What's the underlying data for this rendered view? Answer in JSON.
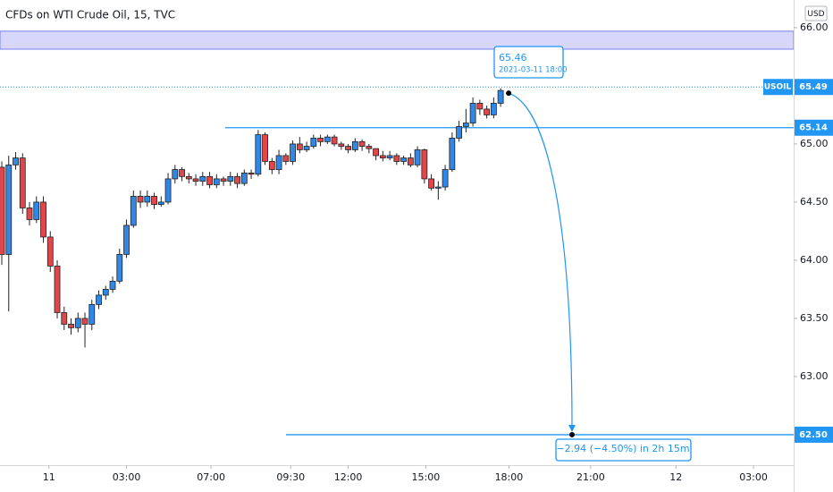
{
  "chart_data": {
    "type": "candlestick",
    "title": "CFDs on WTI Crude Oil, 15, TVC",
    "currency": "USD",
    "up_color": "#2f88e8",
    "down_color": "#e0474c",
    "open": [
      64.8,
      64.05,
      64.82,
      64.88,
      64.45,
      64.35,
      64.5,
      64.2,
      63.95,
      63.55,
      63.45,
      63.42,
      63.5,
      63.45,
      63.62,
      63.7,
      63.75,
      63.82,
      64.05,
      64.3,
      64.55,
      64.5,
      64.55,
      64.48,
      64.5,
      64.7,
      64.78,
      64.72,
      64.7,
      64.68,
      64.72,
      64.65,
      64.7,
      64.68,
      64.72,
      64.66,
      64.75,
      64.74,
      65.08,
      64.85,
      64.78,
      64.9,
      64.85,
      65.0,
      64.95,
      64.98,
      65.05,
      65.02,
      65.06,
      65.0,
      64.98,
      64.95,
      65.02,
      64.98,
      64.96,
      64.9,
      64.88,
      64.9,
      64.85,
      64.88,
      64.82,
      64.95,
      64.7,
      64.62,
      64.63,
      64.78,
      65.05,
      65.15,
      65.18,
      65.35,
      65.3,
      65.25,
      65.35
    ],
    "high": [
      64.85,
      64.9,
      64.93,
      64.92,
      64.5,
      64.55,
      64.55,
      64.25,
      64.0,
      63.6,
      63.5,
      63.55,
      63.55,
      63.66,
      63.74,
      63.78,
      63.86,
      64.1,
      64.35,
      64.6,
      64.6,
      64.6,
      64.58,
      64.55,
      64.75,
      64.82,
      64.8,
      64.75,
      64.74,
      64.76,
      64.76,
      64.74,
      64.72,
      64.76,
      64.75,
      64.78,
      64.78,
      65.12,
      65.1,
      64.88,
      64.95,
      64.92,
      65.03,
      65.06,
      65.02,
      65.08,
      65.08,
      65.08,
      65.08,
      65.02,
      65.0,
      65.05,
      65.04,
      65.0,
      64.96,
      64.94,
      64.94,
      64.92,
      64.9,
      64.92,
      64.98,
      64.96,
      64.74,
      64.68,
      64.82,
      65.1,
      65.2,
      65.3,
      65.4,
      65.38,
      65.33,
      65.4,
      65.48
    ],
    "low": [
      63.96,
      63.56,
      64.78,
      64.4,
      64.3,
      64.32,
      64.15,
      63.9,
      63.5,
      63.4,
      63.36,
      63.38,
      63.25,
      63.4,
      63.58,
      63.66,
      63.72,
      63.8,
      64.02,
      64.28,
      64.45,
      64.46,
      64.44,
      64.46,
      64.48,
      64.66,
      64.68,
      64.66,
      64.64,
      64.64,
      64.62,
      64.62,
      64.64,
      64.64,
      64.62,
      64.64,
      64.7,
      64.72,
      64.82,
      64.74,
      64.74,
      64.82,
      64.82,
      64.92,
      64.93,
      64.96,
      64.98,
      65.0,
      64.98,
      64.95,
      64.92,
      64.93,
      64.94,
      64.92,
      64.86,
      64.85,
      64.86,
      64.82,
      64.82,
      64.8,
      64.8,
      64.66,
      64.6,
      64.52,
      64.6,
      64.76,
      65.02,
      65.1,
      65.15,
      65.25,
      65.22,
      65.22,
      65.32
    ],
    "close": [
      64.05,
      64.82,
      64.88,
      64.45,
      64.35,
      64.5,
      64.2,
      63.95,
      63.55,
      63.45,
      63.42,
      63.5,
      63.45,
      63.62,
      63.7,
      63.75,
      63.82,
      64.05,
      64.3,
      64.55,
      64.5,
      64.55,
      64.48,
      64.5,
      64.7,
      64.78,
      64.72,
      64.7,
      64.68,
      64.72,
      64.65,
      64.7,
      64.68,
      64.72,
      64.66,
      64.75,
      64.74,
      65.08,
      64.85,
      64.78,
      64.9,
      64.85,
      65.0,
      64.95,
      64.98,
      65.05,
      65.02,
      65.06,
      65.0,
      64.98,
      64.95,
      65.02,
      64.98,
      64.96,
      64.9,
      64.88,
      64.9,
      64.85,
      64.88,
      64.82,
      64.95,
      64.7,
      64.62,
      64.63,
      64.78,
      65.05,
      65.15,
      65.18,
      65.35,
      65.3,
      65.25,
      65.35,
      65.46
    ],
    "xlim": [
      -0.26,
      114.3
    ],
    "xticks": [
      {
        "value": 6.8,
        "label": "11"
      },
      {
        "value": 18,
        "label": "03:00"
      },
      {
        "value": 30.2,
        "label": "07:00"
      },
      {
        "value": 41.7,
        "label": "09:30"
      },
      {
        "value": 50,
        "label": "12:00"
      },
      {
        "value": 61.2,
        "label": "15:00"
      },
      {
        "value": 73.2,
        "label": "18:00"
      },
      {
        "value": 85,
        "label": "21:00"
      },
      {
        "value": 97.3,
        "label": "12"
      },
      {
        "value": 108.5,
        "label": "03:00"
      }
    ],
    "ylim": [
      62.238,
      66.238
    ],
    "yticks": [
      {
        "value": 63,
        "label": "63.00"
      },
      {
        "value": 63.5,
        "label": "63.50"
      },
      {
        "value": 64,
        "label": "64.00"
      },
      {
        "value": 64.5,
        "label": "64.50"
      },
      {
        "value": 65,
        "label": "65.00"
      },
      {
        "value": 65.5,
        "label": "65.50"
      },
      {
        "value": 66,
        "label": "66.00"
      }
    ],
    "zone": [
      65.815,
      65.97
    ],
    "last_price": {
      "name": "USOIL",
      "value": 65.49
    },
    "levels": [
      {
        "value": 65.14
      },
      {
        "value": 62.5,
        "label": "62.50"
      }
    ],
    "annotation": {
      "value": 65.46,
      "time": "2021-03-11 18:00",
      "change_label": "−2.94 (−4.50%) in 2h 15m"
    }
  }
}
